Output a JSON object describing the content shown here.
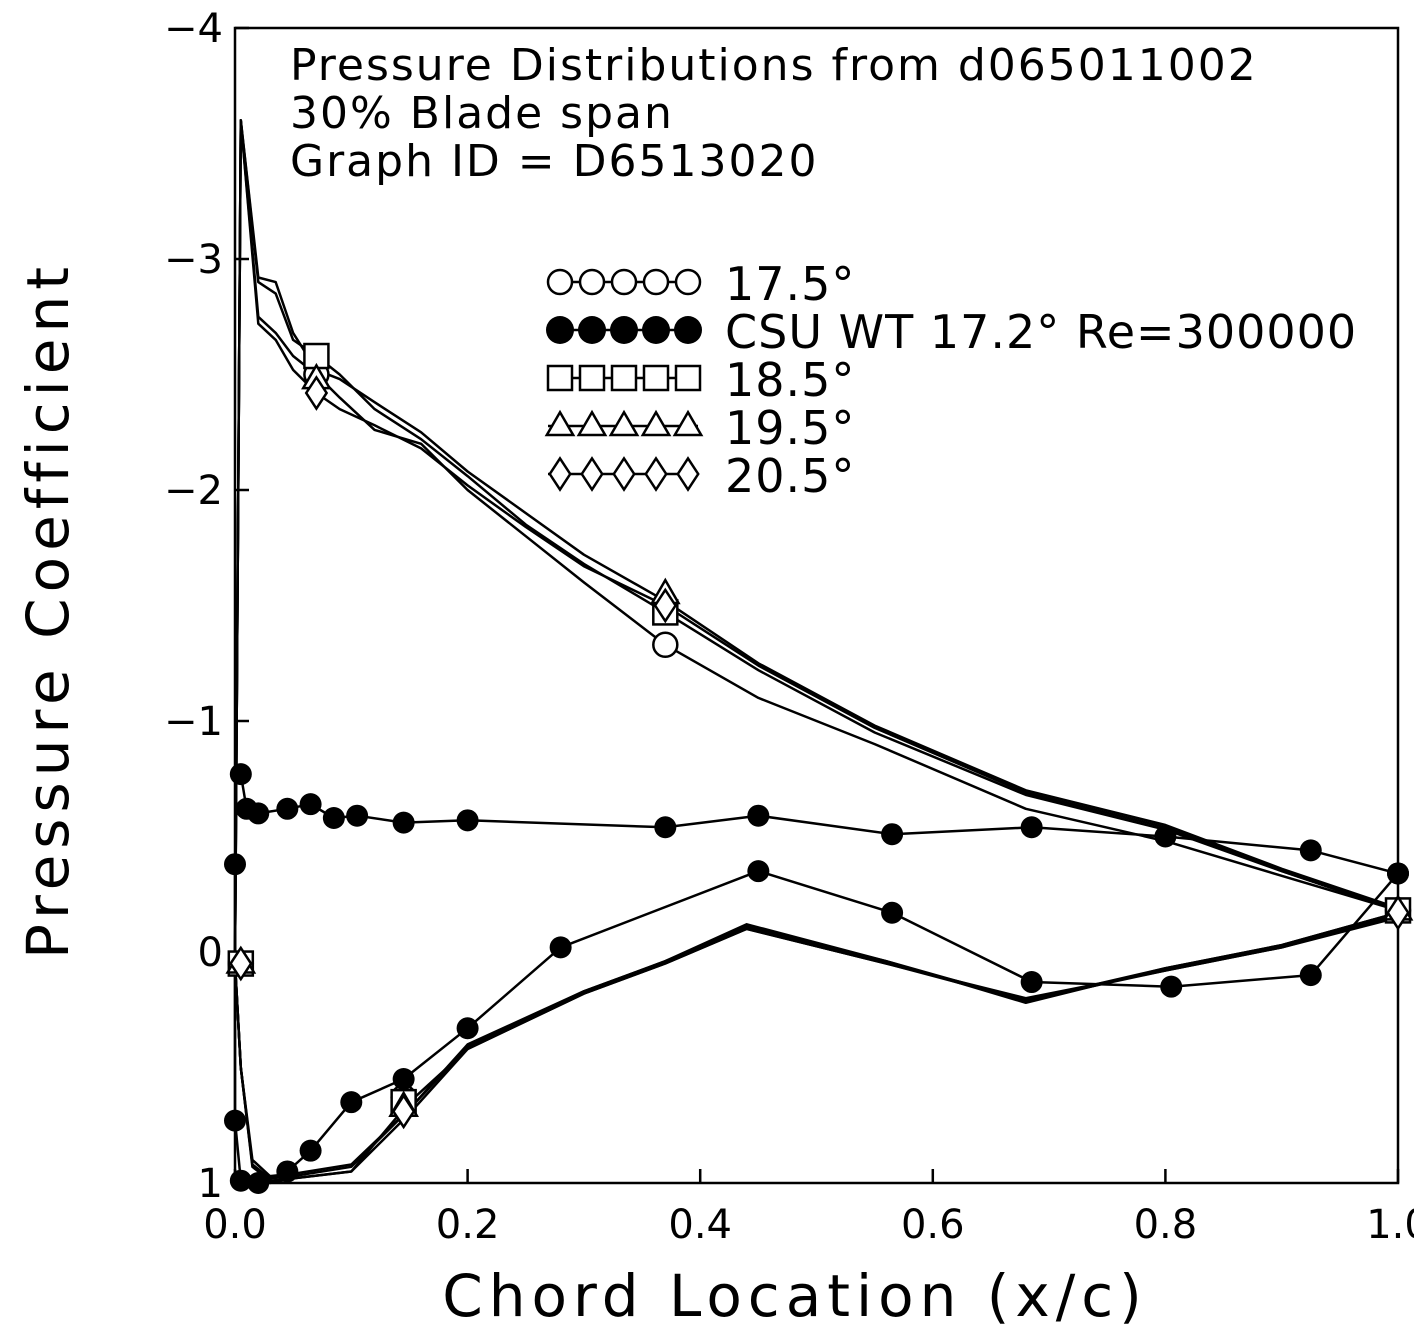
{
  "chart_data": {
    "type": "line",
    "title_lines": [
      "Pressure Distributions from d065011002",
      "30% Blade span",
      "Graph ID = D6513020"
    ],
    "xlabel": "Chord Location (x/c)",
    "ylabel": "Pressure Coefficient",
    "xlim": [
      0.0,
      1.0
    ],
    "ylim": [
      -4,
      1
    ],
    "y_inverted": true,
    "x_ticks": [
      "0.0",
      "0.2",
      "0.4",
      "0.6",
      "0.8",
      "1.0"
    ],
    "x_tick_values": [
      0.0,
      0.2,
      0.4,
      0.6,
      0.8,
      1.0
    ],
    "y_ticks": [
      "-4",
      "-3",
      "-2",
      "-1",
      "0",
      "1"
    ],
    "y_tick_values": [
      -4,
      -3,
      -2,
      -1,
      0,
      1
    ],
    "grid": false,
    "legend_position": "upper-center",
    "series": [
      {
        "name": "17.5°",
        "marker": "circle-open",
        "upper": [
          [
            0.0,
            0.05
          ],
          [
            0.005,
            -3.6
          ],
          [
            0.02,
            -2.75
          ],
          [
            0.035,
            -2.68
          ],
          [
            0.05,
            -2.58
          ],
          [
            0.07,
            -2.5
          ],
          [
            0.09,
            -2.4
          ],
          [
            0.12,
            -2.26
          ],
          [
            0.16,
            -2.2
          ],
          [
            0.2,
            -2.0
          ],
          [
            0.25,
            -1.8
          ],
          [
            0.3,
            -1.6
          ],
          [
            0.37,
            -1.33
          ],
          [
            0.45,
            -1.1
          ],
          [
            0.55,
            -0.9
          ],
          [
            0.68,
            -0.62
          ],
          [
            0.8,
            -0.48
          ],
          [
            0.9,
            -0.33
          ],
          [
            1.0,
            -0.18
          ]
        ],
        "lower": [
          [
            0.0,
            0.05
          ],
          [
            0.005,
            0.5
          ],
          [
            0.015,
            0.92
          ],
          [
            0.03,
            1.0
          ],
          [
            0.05,
            0.98
          ],
          [
            0.1,
            0.95
          ],
          [
            0.15,
            0.65
          ],
          [
            0.2,
            0.42
          ],
          [
            0.3,
            0.18
          ],
          [
            0.37,
            0.05
          ],
          [
            0.44,
            -0.1
          ],
          [
            0.56,
            0.05
          ],
          [
            0.68,
            0.2
          ],
          [
            0.8,
            0.08
          ],
          [
            0.9,
            -0.02
          ],
          [
            1.0,
            -0.15
          ]
        ],
        "marked_points": [
          [
            0.005,
            0.05
          ],
          [
            0.07,
            -2.5
          ],
          [
            0.145,
            0.63
          ],
          [
            0.37,
            -1.33
          ],
          [
            1.0,
            -0.18
          ]
        ]
      },
      {
        "name": "CSU WT 17.2° Re=300000",
        "marker": "circle-filled",
        "upper": [
          [
            0.005,
            -0.77
          ],
          [
            0.01,
            -0.62
          ],
          [
            0.02,
            -0.6
          ],
          [
            0.045,
            -0.62
          ],
          [
            0.065,
            -0.64
          ],
          [
            0.085,
            -0.58
          ],
          [
            0.105,
            -0.59
          ],
          [
            0.145,
            -0.56
          ],
          [
            0.2,
            -0.57
          ],
          [
            0.37,
            -0.54
          ],
          [
            0.45,
            -0.59
          ],
          [
            0.565,
            -0.51
          ],
          [
            0.685,
            -0.54
          ],
          [
            0.8,
            -0.5
          ],
          [
            0.925,
            -0.44
          ],
          [
            1.0,
            -0.34
          ]
        ],
        "lower": [
          [
            0.0,
            -0.38
          ],
          [
            0.0,
            0.73
          ],
          [
            0.005,
            0.99
          ],
          [
            0.02,
            1.0
          ],
          [
            0.045,
            0.95
          ],
          [
            0.065,
            0.86
          ],
          [
            0.1,
            0.65
          ],
          [
            0.145,
            0.55
          ],
          [
            0.2,
            0.33
          ],
          [
            0.28,
            -0.02
          ],
          [
            0.45,
            -0.35
          ],
          [
            0.565,
            -0.17
          ],
          [
            0.685,
            0.13
          ],
          [
            0.805,
            0.15
          ],
          [
            0.925,
            0.1
          ],
          [
            1.0,
            -0.34
          ]
        ]
      },
      {
        "name": "18.5°",
        "marker": "square-open",
        "upper": [
          [
            0.0,
            0.05
          ],
          [
            0.005,
            -3.6
          ],
          [
            0.02,
            -2.9
          ],
          [
            0.035,
            -2.85
          ],
          [
            0.05,
            -2.65
          ],
          [
            0.07,
            -2.58
          ],
          [
            0.09,
            -2.5
          ],
          [
            0.12,
            -2.35
          ],
          [
            0.16,
            -2.22
          ],
          [
            0.2,
            -2.06
          ],
          [
            0.25,
            -1.85
          ],
          [
            0.3,
            -1.68
          ],
          [
            0.37,
            -1.47
          ],
          [
            0.45,
            -1.22
          ],
          [
            0.55,
            -0.95
          ],
          [
            0.68,
            -0.68
          ],
          [
            0.8,
            -0.53
          ],
          [
            0.9,
            -0.35
          ],
          [
            1.0,
            -0.18
          ]
        ],
        "lower": [
          [
            0.0,
            0.05
          ],
          [
            0.005,
            0.5
          ],
          [
            0.015,
            0.92
          ],
          [
            0.03,
            0.98
          ],
          [
            0.05,
            0.97
          ],
          [
            0.1,
            0.93
          ],
          [
            0.15,
            0.68
          ],
          [
            0.2,
            0.4
          ],
          [
            0.3,
            0.17
          ],
          [
            0.37,
            0.04
          ],
          [
            0.44,
            -0.12
          ],
          [
            0.56,
            0.04
          ],
          [
            0.68,
            0.22
          ],
          [
            0.8,
            0.07
          ],
          [
            0.9,
            -0.03
          ],
          [
            1.0,
            -0.17
          ]
        ],
        "marked_points": [
          [
            0.005,
            0.05
          ],
          [
            0.07,
            -2.58
          ],
          [
            0.145,
            0.65
          ],
          [
            0.37,
            -1.47
          ],
          [
            1.0,
            -0.18
          ]
        ]
      },
      {
        "name": "19.5°",
        "marker": "triangle-open",
        "upper": [
          [
            0.0,
            0.05
          ],
          [
            0.005,
            -3.6
          ],
          [
            0.02,
            -2.92
          ],
          [
            0.035,
            -2.9
          ],
          [
            0.05,
            -2.68
          ],
          [
            0.07,
            -2.52
          ],
          [
            0.09,
            -2.48
          ],
          [
            0.12,
            -2.38
          ],
          [
            0.16,
            -2.25
          ],
          [
            0.2,
            -2.08
          ],
          [
            0.25,
            -1.9
          ],
          [
            0.3,
            -1.72
          ],
          [
            0.37,
            -1.52
          ],
          [
            0.45,
            -1.25
          ],
          [
            0.55,
            -0.98
          ],
          [
            0.68,
            -0.7
          ],
          [
            0.8,
            -0.55
          ],
          [
            0.9,
            -0.36
          ],
          [
            1.0,
            -0.19
          ]
        ],
        "lower": [
          [
            0.0,
            0.05
          ],
          [
            0.005,
            0.5
          ],
          [
            0.015,
            0.9
          ],
          [
            0.03,
            0.97
          ],
          [
            0.05,
            0.96
          ],
          [
            0.1,
            0.92
          ],
          [
            0.15,
            0.68
          ],
          [
            0.2,
            0.41
          ],
          [
            0.3,
            0.17
          ],
          [
            0.37,
            0.04
          ],
          [
            0.44,
            -0.11
          ],
          [
            0.56,
            0.04
          ],
          [
            0.68,
            0.21
          ],
          [
            0.8,
            0.07
          ],
          [
            0.9,
            -0.03
          ],
          [
            1.0,
            -0.17
          ]
        ],
        "marked_points": [
          [
            0.005,
            0.05
          ],
          [
            0.07,
            -2.48
          ],
          [
            0.145,
            0.67
          ],
          [
            0.37,
            -1.55
          ],
          [
            1.0,
            -0.18
          ]
        ]
      },
      {
        "name": "20.5°",
        "marker": "diamond-open",
        "upper": [
          [
            0.0,
            0.05
          ],
          [
            0.005,
            -3.6
          ],
          [
            0.02,
            -2.72
          ],
          [
            0.035,
            -2.65
          ],
          [
            0.05,
            -2.52
          ],
          [
            0.07,
            -2.42
          ],
          [
            0.09,
            -2.35
          ],
          [
            0.12,
            -2.28
          ],
          [
            0.16,
            -2.18
          ],
          [
            0.2,
            -2.02
          ],
          [
            0.25,
            -1.84
          ],
          [
            0.3,
            -1.67
          ],
          [
            0.37,
            -1.5
          ],
          [
            0.45,
            -1.24
          ],
          [
            0.55,
            -0.97
          ],
          [
            0.68,
            -0.69
          ],
          [
            0.8,
            -0.54
          ],
          [
            0.9,
            -0.35
          ],
          [
            1.0,
            -0.18
          ]
        ],
        "lower": [
          [
            0.0,
            0.05
          ],
          [
            0.005,
            0.5
          ],
          [
            0.015,
            0.93
          ],
          [
            0.03,
            0.99
          ],
          [
            0.05,
            0.98
          ],
          [
            0.1,
            0.95
          ],
          [
            0.15,
            0.7
          ],
          [
            0.2,
            0.42
          ],
          [
            0.3,
            0.18
          ],
          [
            0.37,
            0.05
          ],
          [
            0.44,
            -0.1
          ],
          [
            0.56,
            0.05
          ],
          [
            0.68,
            0.21
          ],
          [
            0.8,
            0.08
          ],
          [
            0.9,
            -0.02
          ],
          [
            1.0,
            -0.16
          ]
        ],
        "marked_points": [
          [
            0.005,
            0.05
          ],
          [
            0.07,
            -2.42
          ],
          [
            0.145,
            0.69
          ],
          [
            0.37,
            -1.5
          ],
          [
            1.0,
            -0.17
          ]
        ]
      }
    ]
  }
}
